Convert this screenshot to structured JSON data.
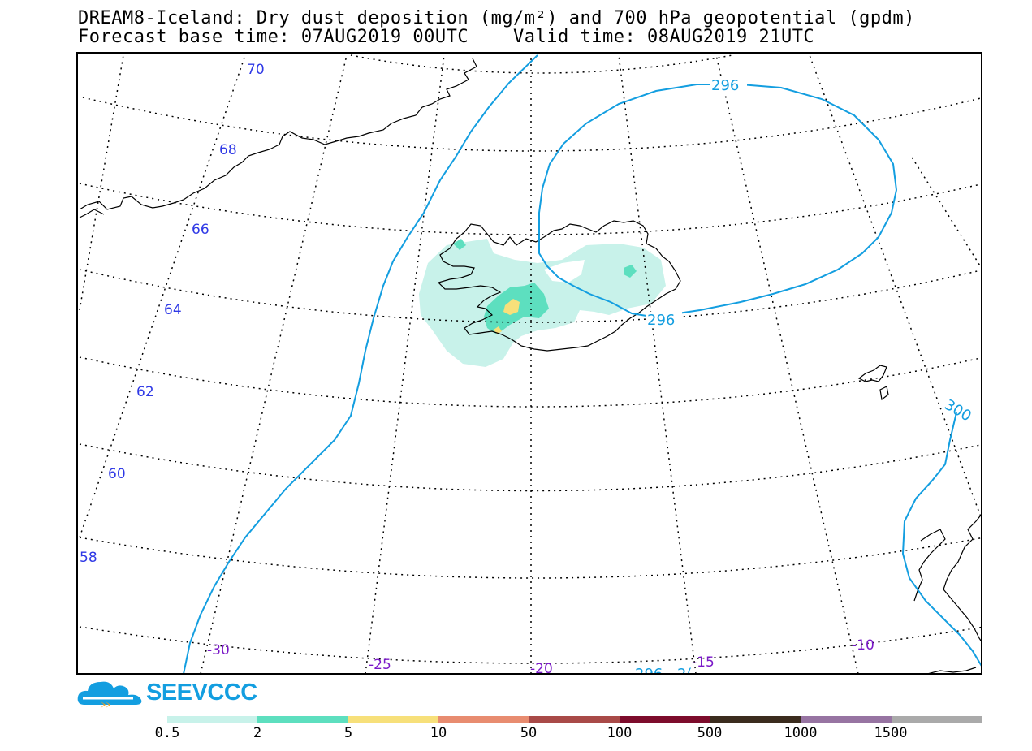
{
  "header": {
    "title_line1": "DREAM8-Iceland: Dry dust deposition (mg/m²) and 700 hPa geopotential (gpdm)",
    "title_line2": "Forecast base time: 07AUG2019 00UTC    Valid time: 08AUG2019 21UTC"
  },
  "map": {
    "latitude_labels": [
      "70",
      "68",
      "66",
      "64",
      "62",
      "60",
      "58"
    ],
    "longitude_labels": [
      "-30",
      "-25",
      "-20",
      "-15",
      "-10"
    ],
    "contour_labels": [
      "296",
      "296",
      "300",
      "296",
      "2("
    ],
    "colors": {
      "graticule": "#000000",
      "coastline": "#000000",
      "contour": "#139ee0",
      "latitude_label": "#2f39e6",
      "longitude_label": "#7a18c8"
    },
    "dust_levels_shown": [
      "0.5",
      "2",
      "5"
    ]
  },
  "logo": {
    "text": "SEEVCCC",
    "icon": "cloud-logo-icon"
  },
  "colorbar": {
    "labels": [
      "0.5",
      "2",
      "5",
      "10",
      "50",
      "100",
      "500",
      "1000",
      "1500"
    ],
    "colors": [
      "#c8f2ea",
      "#5ddfbf",
      "#f7e07a",
      "#e88c70",
      "#a94a48",
      "#7d0c2c",
      "#3b2c1e",
      "#9774a2",
      "#aaaaaa"
    ]
  }
}
